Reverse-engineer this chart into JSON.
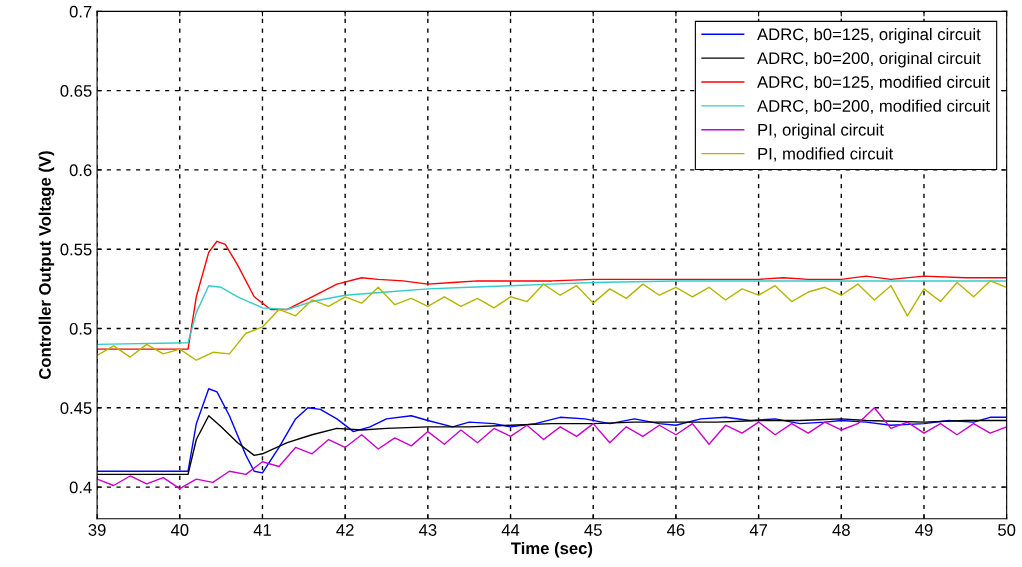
{
  "chart_data": {
    "type": "line",
    "xlabel": "Time (sec)",
    "ylabel": "Controller Output Voltage (V)",
    "xlim": [
      39,
      50
    ],
    "ylim": [
      0.38,
      0.7
    ],
    "xticks": [
      39,
      40,
      41,
      42,
      43,
      44,
      45,
      46,
      47,
      48,
      49,
      50
    ],
    "yticks": [
      0.4,
      0.45,
      0.5,
      0.55,
      0.6,
      0.65,
      0.7
    ],
    "grid": true,
    "legend": "top right",
    "line_style": "solid",
    "marker": "none",
    "series": [
      {
        "name": "ADRC, b0=125, original circuit",
        "color": "#0000ff",
        "x": [
          39,
          40.0,
          40.1,
          40.2,
          40.35,
          40.45,
          40.6,
          40.8,
          40.9,
          41.0,
          41.2,
          41.4,
          41.55,
          41.7,
          41.9,
          42.1,
          42.3,
          42.5,
          42.8,
          43.0,
          43.3,
          43.5,
          43.8,
          44.0,
          44.3,
          44.6,
          44.9,
          45.2,
          45.5,
          45.8,
          46.0,
          46.3,
          46.6,
          46.9,
          47.2,
          47.5,
          47.8,
          48.0,
          48.3,
          48.6,
          49.0,
          49.3,
          49.6,
          49.8,
          50
        ],
        "values": [
          0.41,
          0.41,
          0.41,
          0.44,
          0.462,
          0.46,
          0.445,
          0.42,
          0.41,
          0.409,
          0.425,
          0.443,
          0.45,
          0.449,
          0.443,
          0.435,
          0.438,
          0.443,
          0.445,
          0.442,
          0.438,
          0.441,
          0.44,
          0.438,
          0.44,
          0.444,
          0.443,
          0.44,
          0.443,
          0.44,
          0.439,
          0.443,
          0.444,
          0.442,
          0.443,
          0.44,
          0.441,
          0.442,
          0.441,
          0.439,
          0.44,
          0.442,
          0.441,
          0.444,
          0.444
        ]
      },
      {
        "name": "ADRC, b0=200, original circuit",
        "color": "#000000",
        "x": [
          39,
          40.1,
          40.2,
          40.35,
          40.5,
          40.7,
          40.9,
          41.0,
          41.3,
          41.6,
          41.9,
          42.2,
          42.5,
          43,
          43.5,
          44,
          44.5,
          45,
          45.5,
          46,
          46.5,
          47,
          47.5,
          48,
          48.3,
          49,
          49.5,
          50
        ],
        "values": [
          0.408,
          0.408,
          0.43,
          0.445,
          0.438,
          0.428,
          0.42,
          0.421,
          0.428,
          0.433,
          0.437,
          0.436,
          0.437,
          0.438,
          0.438,
          0.439,
          0.44,
          0.44,
          0.441,
          0.441,
          0.441,
          0.442,
          0.442,
          0.443,
          0.442,
          0.441,
          0.442,
          0.442
        ]
      },
      {
        "name": "ADRC, b0=125, modified circuit",
        "color": "#ff0000",
        "x": [
          39,
          40.1,
          40.2,
          40.35,
          40.45,
          40.55,
          40.7,
          40.9,
          41.1,
          41.3,
          41.6,
          41.9,
          42.2,
          42.4,
          42.7,
          43,
          43.3,
          43.6,
          44,
          44.5,
          45,
          45.5,
          46,
          46.5,
          47,
          47.3,
          47.6,
          48,
          48.3,
          48.6,
          49,
          49.5,
          50
        ],
        "values": [
          0.487,
          0.487,
          0.52,
          0.548,
          0.555,
          0.553,
          0.54,
          0.52,
          0.512,
          0.512,
          0.52,
          0.528,
          0.532,
          0.531,
          0.53,
          0.528,
          0.529,
          0.53,
          0.53,
          0.53,
          0.531,
          0.531,
          0.531,
          0.531,
          0.531,
          0.532,
          0.531,
          0.531,
          0.533,
          0.531,
          0.533,
          0.532,
          0.532
        ]
      },
      {
        "name": "ADRC, b0=200, modified circuit",
        "color": "#33cccc",
        "x": [
          39,
          40.1,
          40.2,
          40.35,
          40.5,
          40.7,
          41.0,
          41.3,
          41.6,
          42,
          42.5,
          43,
          43.5,
          44,
          44.5,
          45,
          46,
          47,
          48,
          49,
          50
        ],
        "values": [
          0.49,
          0.491,
          0.51,
          0.527,
          0.526,
          0.52,
          0.513,
          0.512,
          0.517,
          0.521,
          0.523,
          0.525,
          0.526,
          0.527,
          0.528,
          0.529,
          0.53,
          0.53,
          0.53,
          0.53,
          0.53
        ]
      },
      {
        "name": "PI, original circuit",
        "color": "#cc00cc",
        "x": [
          39.0,
          39.2,
          39.4,
          39.6,
          39.8,
          40.0,
          40.2,
          40.4,
          40.6,
          40.8,
          41.0,
          41.2,
          41.4,
          41.6,
          41.8,
          42.0,
          42.2,
          42.4,
          42.6,
          42.8,
          43.0,
          43.2,
          43.4,
          43.6,
          43.8,
          44.0,
          44.2,
          44.4,
          44.6,
          44.8,
          45.0,
          45.2,
          45.4,
          45.6,
          45.8,
          46.0,
          46.2,
          46.4,
          46.6,
          46.8,
          47.0,
          47.2,
          47.4,
          47.6,
          47.8,
          48.0,
          48.2,
          48.4,
          48.6,
          48.8,
          49.0,
          49.2,
          49.4,
          49.6,
          49.8,
          50.0
        ],
        "values": [
          0.405,
          0.401,
          0.407,
          0.402,
          0.406,
          0.399,
          0.405,
          0.403,
          0.41,
          0.408,
          0.416,
          0.413,
          0.425,
          0.421,
          0.43,
          0.425,
          0.433,
          0.424,
          0.431,
          0.426,
          0.435,
          0.427,
          0.436,
          0.428,
          0.437,
          0.432,
          0.439,
          0.43,
          0.438,
          0.432,
          0.44,
          0.428,
          0.438,
          0.432,
          0.439,
          0.433,
          0.44,
          0.427,
          0.439,
          0.434,
          0.441,
          0.433,
          0.44,
          0.434,
          0.441,
          0.436,
          0.44,
          0.45,
          0.437,
          0.441,
          0.434,
          0.44,
          0.433,
          0.44,
          0.434,
          0.438
        ]
      },
      {
        "name": "PI, modified circuit",
        "color": "#b5b500",
        "x": [
          39.0,
          39.2,
          39.4,
          39.6,
          39.8,
          40.0,
          40.2,
          40.4,
          40.6,
          40.8,
          41.0,
          41.2,
          41.4,
          41.6,
          41.8,
          42.0,
          42.2,
          42.4,
          42.6,
          42.8,
          43.0,
          43.2,
          43.4,
          43.6,
          43.8,
          44.0,
          44.2,
          44.4,
          44.6,
          44.8,
          45.0,
          45.2,
          45.4,
          45.6,
          45.8,
          46.0,
          46.2,
          46.4,
          46.6,
          46.8,
          47.0,
          47.2,
          47.4,
          47.6,
          47.8,
          48.0,
          48.2,
          48.4,
          48.6,
          48.8,
          49.0,
          49.2,
          49.4,
          49.6,
          49.8,
          50.0
        ],
        "values": [
          0.483,
          0.489,
          0.482,
          0.49,
          0.484,
          0.487,
          0.48,
          0.485,
          0.484,
          0.497,
          0.501,
          0.512,
          0.508,
          0.518,
          0.514,
          0.52,
          0.516,
          0.526,
          0.515,
          0.519,
          0.514,
          0.52,
          0.514,
          0.519,
          0.513,
          0.52,
          0.517,
          0.528,
          0.521,
          0.527,
          0.516,
          0.525,
          0.519,
          0.528,
          0.521,
          0.526,
          0.52,
          0.526,
          0.518,
          0.525,
          0.521,
          0.527,
          0.517,
          0.523,
          0.526,
          0.521,
          0.528,
          0.518,
          0.527,
          0.508,
          0.525,
          0.517,
          0.529,
          0.52,
          0.53,
          0.526
        ]
      }
    ]
  }
}
